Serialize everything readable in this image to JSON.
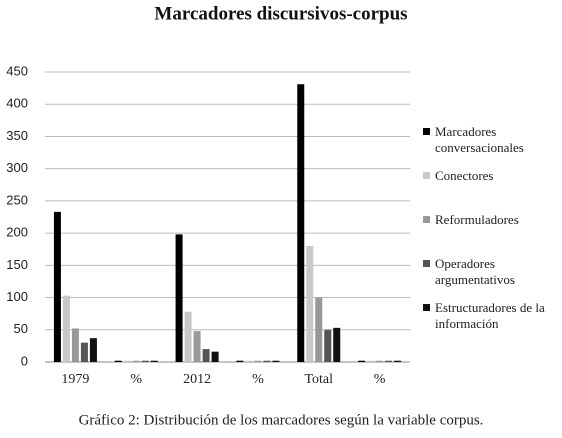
{
  "chart_data": {
    "type": "bar",
    "title": "Marcadores discursivos-corpus",
    "caption": "Gráfico 2: Distribución de los marcadores según la variable corpus.",
    "categories": [
      "1979",
      "%",
      "2012",
      "%",
      "Total",
      "%"
    ],
    "series": [
      {
        "name": "Marcadores conversacionales",
        "color": "#000000",
        "values": [
          233,
          2,
          198,
          2,
          431,
          2
        ]
      },
      {
        "name": "Conectores",
        "color": "#c8c8c8",
        "values": [
          103,
          2,
          78,
          2,
          180,
          2
        ]
      },
      {
        "name": "Reformuladores",
        "color": "#999999",
        "values": [
          52,
          2,
          48,
          2,
          100,
          2
        ]
      },
      {
        "name": "Operadores argumentativos",
        "color": "#555555",
        "values": [
          30,
          2,
          20,
          2,
          50,
          2
        ]
      },
      {
        "name": "Estructuradores de la información",
        "color": "#111111",
        "values": [
          37,
          2,
          16,
          2,
          53,
          2
        ]
      }
    ],
    "ylim": [
      0,
      450
    ],
    "yticks": [
      0,
      50,
      100,
      150,
      200,
      250,
      300,
      350,
      400,
      450
    ],
    "grid": true,
    "legend": "right"
  }
}
